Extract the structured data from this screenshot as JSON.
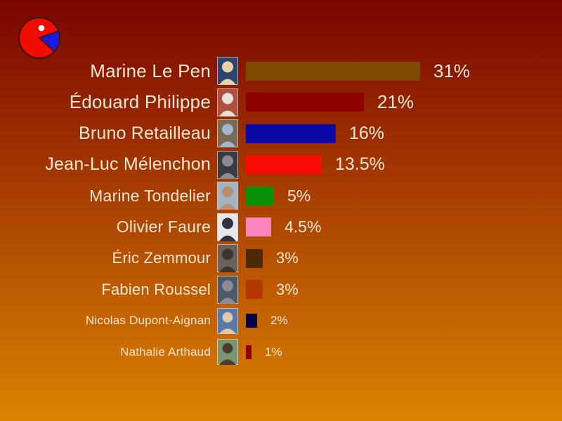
{
  "background": {
    "top": "#7A0400",
    "bottom": "#DC8200"
  },
  "text_color": "#F6E8D5",
  "logo": {
    "name": "red-pie-pacman-logo",
    "body_color": "#F10D04",
    "wedge_color": "#1B1BE0",
    "outline_color": "#4D1404",
    "eye_color": "#FFFFFF"
  },
  "chart_data": {
    "type": "bar",
    "orientation": "horizontal",
    "unit": "%",
    "xlim": [
      0,
      35
    ],
    "grid": false,
    "legend": false,
    "value_labels_shown": true,
    "categories": [
      "Marine Le Pen",
      "Édouard Philippe",
      "Bruno Retailleau",
      "Jean-Luc Mélenchon",
      "Marine Tondelier",
      "Olivier Faure",
      "Éric Zemmour",
      "Fabien Roussel",
      "Nicolas Dupont-Aignan",
      "Nathalie Arthaud"
    ],
    "values": [
      31,
      21,
      16,
      13.5,
      5,
      4.5,
      3,
      3,
      2,
      1
    ],
    "candidates": [
      {
        "name": "Marine Le Pen",
        "value": 31,
        "label": "31%",
        "bar_color": "#7E4A02",
        "photo": {
          "bg": "#2E4470",
          "person": "#E6D3A8"
        }
      },
      {
        "name": "Édouard Philippe",
        "value": 21,
        "label": "21%",
        "bar_color": "#8C0100",
        "photo": {
          "bg": "#B05040",
          "person": "#E8E0D8"
        }
      },
      {
        "name": "Bruno Retailleau",
        "value": 16,
        "label": "16%",
        "bar_color": "#0A08A8",
        "photo": {
          "bg": "#7A6A54",
          "person": "#9FB6CE"
        }
      },
      {
        "name": "Jean-Luc Mélenchon",
        "value": 13.5,
        "label": "13.5%",
        "bar_color": "#FA0B05",
        "photo": {
          "bg": "#3A3A42",
          "person": "#8A8A92"
        }
      },
      {
        "name": "Marine Tondelier",
        "value": 5,
        "label": "5%",
        "bar_color": "#089008",
        "photo": {
          "bg": "#9FB4C4",
          "person": "#B98F6E"
        }
      },
      {
        "name": "Olivier Faure",
        "value": 4.5,
        "label": "4.5%",
        "bar_color": "#FC84BE",
        "photo": {
          "bg": "#E8E8EC",
          "person": "#2E3440"
        }
      },
      {
        "name": "Éric Zemmour",
        "value": 3,
        "label": "3%",
        "bar_color": "#4E2A04",
        "photo": {
          "bg": "#6A6258",
          "person": "#3A3530"
        }
      },
      {
        "name": "Fabien Roussel",
        "value": 3,
        "label": "3%",
        "bar_color": "#B33800",
        "photo": {
          "bg": "#4A5A6A",
          "person": "#8C8C94"
        }
      },
      {
        "name": "Nicolas Dupont-Aignan",
        "value": 2,
        "label": "2%",
        "bar_color": "#000048",
        "photo": {
          "bg": "#5878A8",
          "person": "#E0C8B0"
        }
      },
      {
        "name": "Nathalie Arthaud",
        "value": 1,
        "label": "1%",
        "bar_color": "#8E0000",
        "photo": {
          "bg": "#7A9470",
          "person": "#4A3A30"
        }
      }
    ]
  }
}
